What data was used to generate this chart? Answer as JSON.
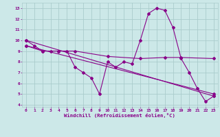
{
  "xlabel": "Windchill (Refroidissement éolien,°C)",
  "xlim": [
    -0.5,
    23.5
  ],
  "ylim": [
    3.8,
    13.5
  ],
  "yticks": [
    4,
    5,
    6,
    7,
    8,
    9,
    10,
    11,
    12,
    13
  ],
  "xticks": [
    0,
    1,
    2,
    3,
    4,
    5,
    6,
    7,
    8,
    9,
    10,
    11,
    12,
    13,
    14,
    15,
    16,
    17,
    18,
    19,
    20,
    21,
    22,
    23
  ],
  "bg_color": "#cce8e8",
  "grid_color": "#aacccc",
  "line_color": "#880088",
  "series1": {
    "x": [
      0,
      1,
      2,
      3,
      4,
      5,
      6,
      7,
      8,
      9,
      10,
      11,
      12,
      13,
      14,
      15,
      16,
      17,
      18,
      19,
      20,
      21,
      22,
      23
    ],
    "y": [
      10.0,
      9.5,
      9.0,
      9.0,
      9.0,
      9.0,
      7.5,
      7.0,
      6.5,
      5.0,
      8.0,
      7.5,
      8.0,
      7.8,
      10.0,
      12.5,
      13.0,
      12.8,
      11.2,
      8.3,
      7.0,
      5.5,
      4.3,
      4.8
    ]
  },
  "series2": {
    "x": [
      0,
      23
    ],
    "y": [
      10.0,
      4.8
    ]
  },
  "series3": {
    "x": [
      0,
      2,
      4,
      6,
      10,
      14,
      17,
      19,
      23
    ],
    "y": [
      9.5,
      9.0,
      9.0,
      9.0,
      8.5,
      8.3,
      8.4,
      8.4,
      8.3
    ]
  },
  "series4": {
    "x": [
      0,
      23
    ],
    "y": [
      9.5,
      5.0
    ]
  }
}
